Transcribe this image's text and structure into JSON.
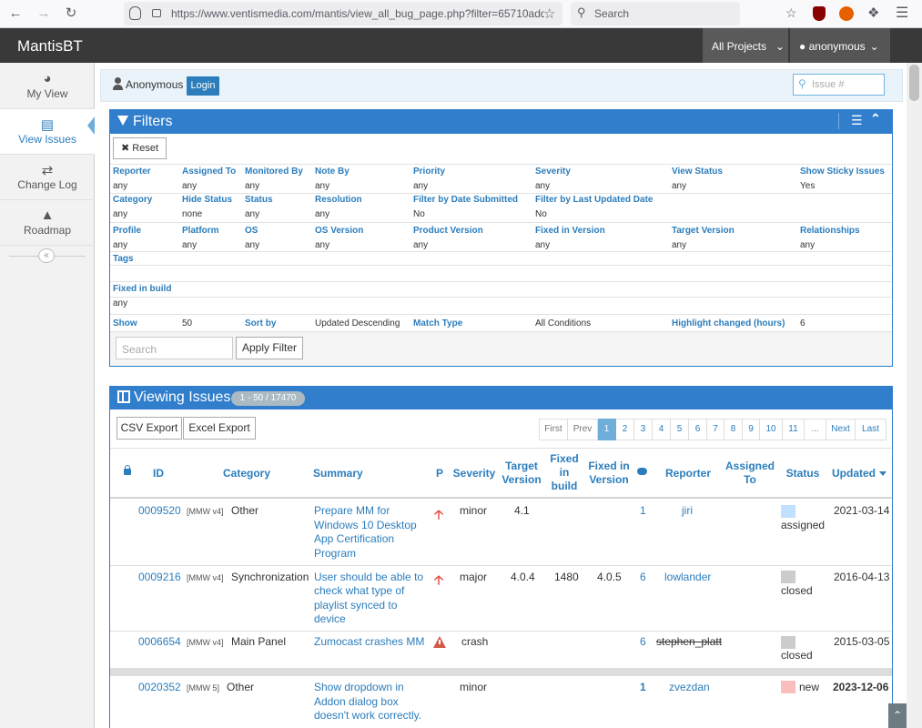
{
  "browser": {
    "url": "https://www.ventismedia.com/mantis/view_all_bug_page.php?filter=65710add",
    "search_placeholder": "Search"
  },
  "navbar": {
    "brand": "MantisBT",
    "projects": "All Projects",
    "user": "anonymous"
  },
  "sidebar": {
    "items": [
      {
        "label": "My View",
        "icon": "dashboard-icon"
      },
      {
        "label": "View Issues",
        "icon": "list-icon"
      },
      {
        "label": "Change Log",
        "icon": "retweet-icon"
      },
      {
        "label": "Roadmap",
        "icon": "road-icon"
      }
    ],
    "collapse": "«"
  },
  "breadcrumb": {
    "user": "Anonymous",
    "login": "Login",
    "issue_placeholder": "Issue #"
  },
  "filters": {
    "title": "Filters",
    "reset": "Reset",
    "rows": [
      {
        "labels": [
          "Reporter",
          "Assigned To",
          "Monitored By",
          "Note By",
          "Priority",
          "Severity",
          "View Status",
          "Show Sticky Issues"
        ],
        "values": [
          "any",
          "any",
          "any",
          "any",
          "any",
          "any",
          "any",
          "Yes"
        ]
      },
      {
        "labels": [
          "Category",
          "Hide Status",
          "Status",
          "Resolution",
          "Filter by Date Submitted",
          "Filter by Last Updated Date",
          "",
          ""
        ],
        "values": [
          "any",
          "none",
          "any",
          "any",
          "No",
          "No",
          "",
          ""
        ]
      },
      {
        "labels": [
          "Profile",
          "Platform",
          "OS",
          "OS Version",
          "Product Version",
          "Fixed in Version",
          "Target Version",
          "Relationships"
        ],
        "values": [
          "any",
          "any",
          "any",
          "any",
          "any",
          "any",
          "any",
          "any"
        ]
      }
    ],
    "tags_label": "Tags",
    "fixed_build_label": "Fixed in build",
    "fixed_build_value": "any",
    "show_label": "Show",
    "show_value": "50",
    "sort_label": "Sort by",
    "sort_value": "Updated Descending",
    "match_label": "Match Type",
    "match_value": "All Conditions",
    "highlight_label": "Highlight changed (hours)",
    "highlight_value": "6",
    "search_placeholder": "Search",
    "apply": "Apply Filter"
  },
  "issues": {
    "title": "Viewing Issues",
    "badge": "1 - 50 / 17470",
    "csv_export": "CSV Export",
    "excel_export": "Excel Export",
    "pagination": [
      "First",
      "Prev",
      "1",
      "2",
      "3",
      "4",
      "5",
      "6",
      "7",
      "8",
      "9",
      "10",
      "11",
      "...",
      "Next",
      "Last"
    ],
    "headers": {
      "id": "ID",
      "category": "Category",
      "summary": "Summary",
      "priority": "P",
      "severity": "Severity",
      "target_version": "Target Version",
      "fixed_in_build": "Fixed in build",
      "fixed_in_version": "Fixed in Version",
      "reporter": "Reporter",
      "assigned_to": "Assigned To",
      "status": "Status",
      "updated": "Updated"
    },
    "rows": [
      {
        "id": "0009520",
        "project": "[MMW v4]",
        "category": "Other",
        "summary": [
          "Prepare MM for",
          "Windows 10 Desktop",
          "App Certification",
          "Program"
        ],
        "severity": "minor",
        "target": "4.1",
        "build": "",
        "fixed": "",
        "notes": "1",
        "reporter": "jiri",
        "status": "assigned",
        "status_color": "#c2e0ff",
        "updated": "2021-03-14",
        "priority_icon": "high-priority-icon"
      },
      {
        "id": "0009216",
        "project": "[MMW v4]",
        "category": "Synchronization",
        "summary": [
          "User should be able to",
          "check what type of",
          "playlist synced to",
          "device"
        ],
        "severity": "major",
        "target": "4.0.4",
        "build": "1480",
        "fixed": "4.0.5",
        "notes": "6",
        "reporter": "lowlander",
        "status": "closed",
        "status_color": "#cccccc",
        "updated": "2016-04-13",
        "priority_icon": "high-priority-icon"
      },
      {
        "id": "0006654",
        "project": "[MMW v4]",
        "category": "Main Panel",
        "summary": [
          "Zumocast crashes MM"
        ],
        "severity": "crash",
        "target": "",
        "build": "",
        "fixed": "",
        "notes": "6",
        "reporter": "stephen_platt",
        "status": "closed",
        "status_color": "#cccccc",
        "updated": "2015-03-05",
        "priority_icon": "immediate-priority-icon"
      },
      {
        "id": "0020352",
        "project": "[MMW 5]",
        "category": "Other",
        "summary": [
          "Show dropdown in",
          "Addon dialog box",
          "doesn't work correctly."
        ],
        "severity": "minor",
        "target": "",
        "build": "",
        "fixed": "",
        "notes": "1",
        "reporter": "zvezdan",
        "status": "new",
        "status_color": "#fcbdbd",
        "updated": "2023-12-06",
        "priority_icon": ""
      }
    ]
  }
}
